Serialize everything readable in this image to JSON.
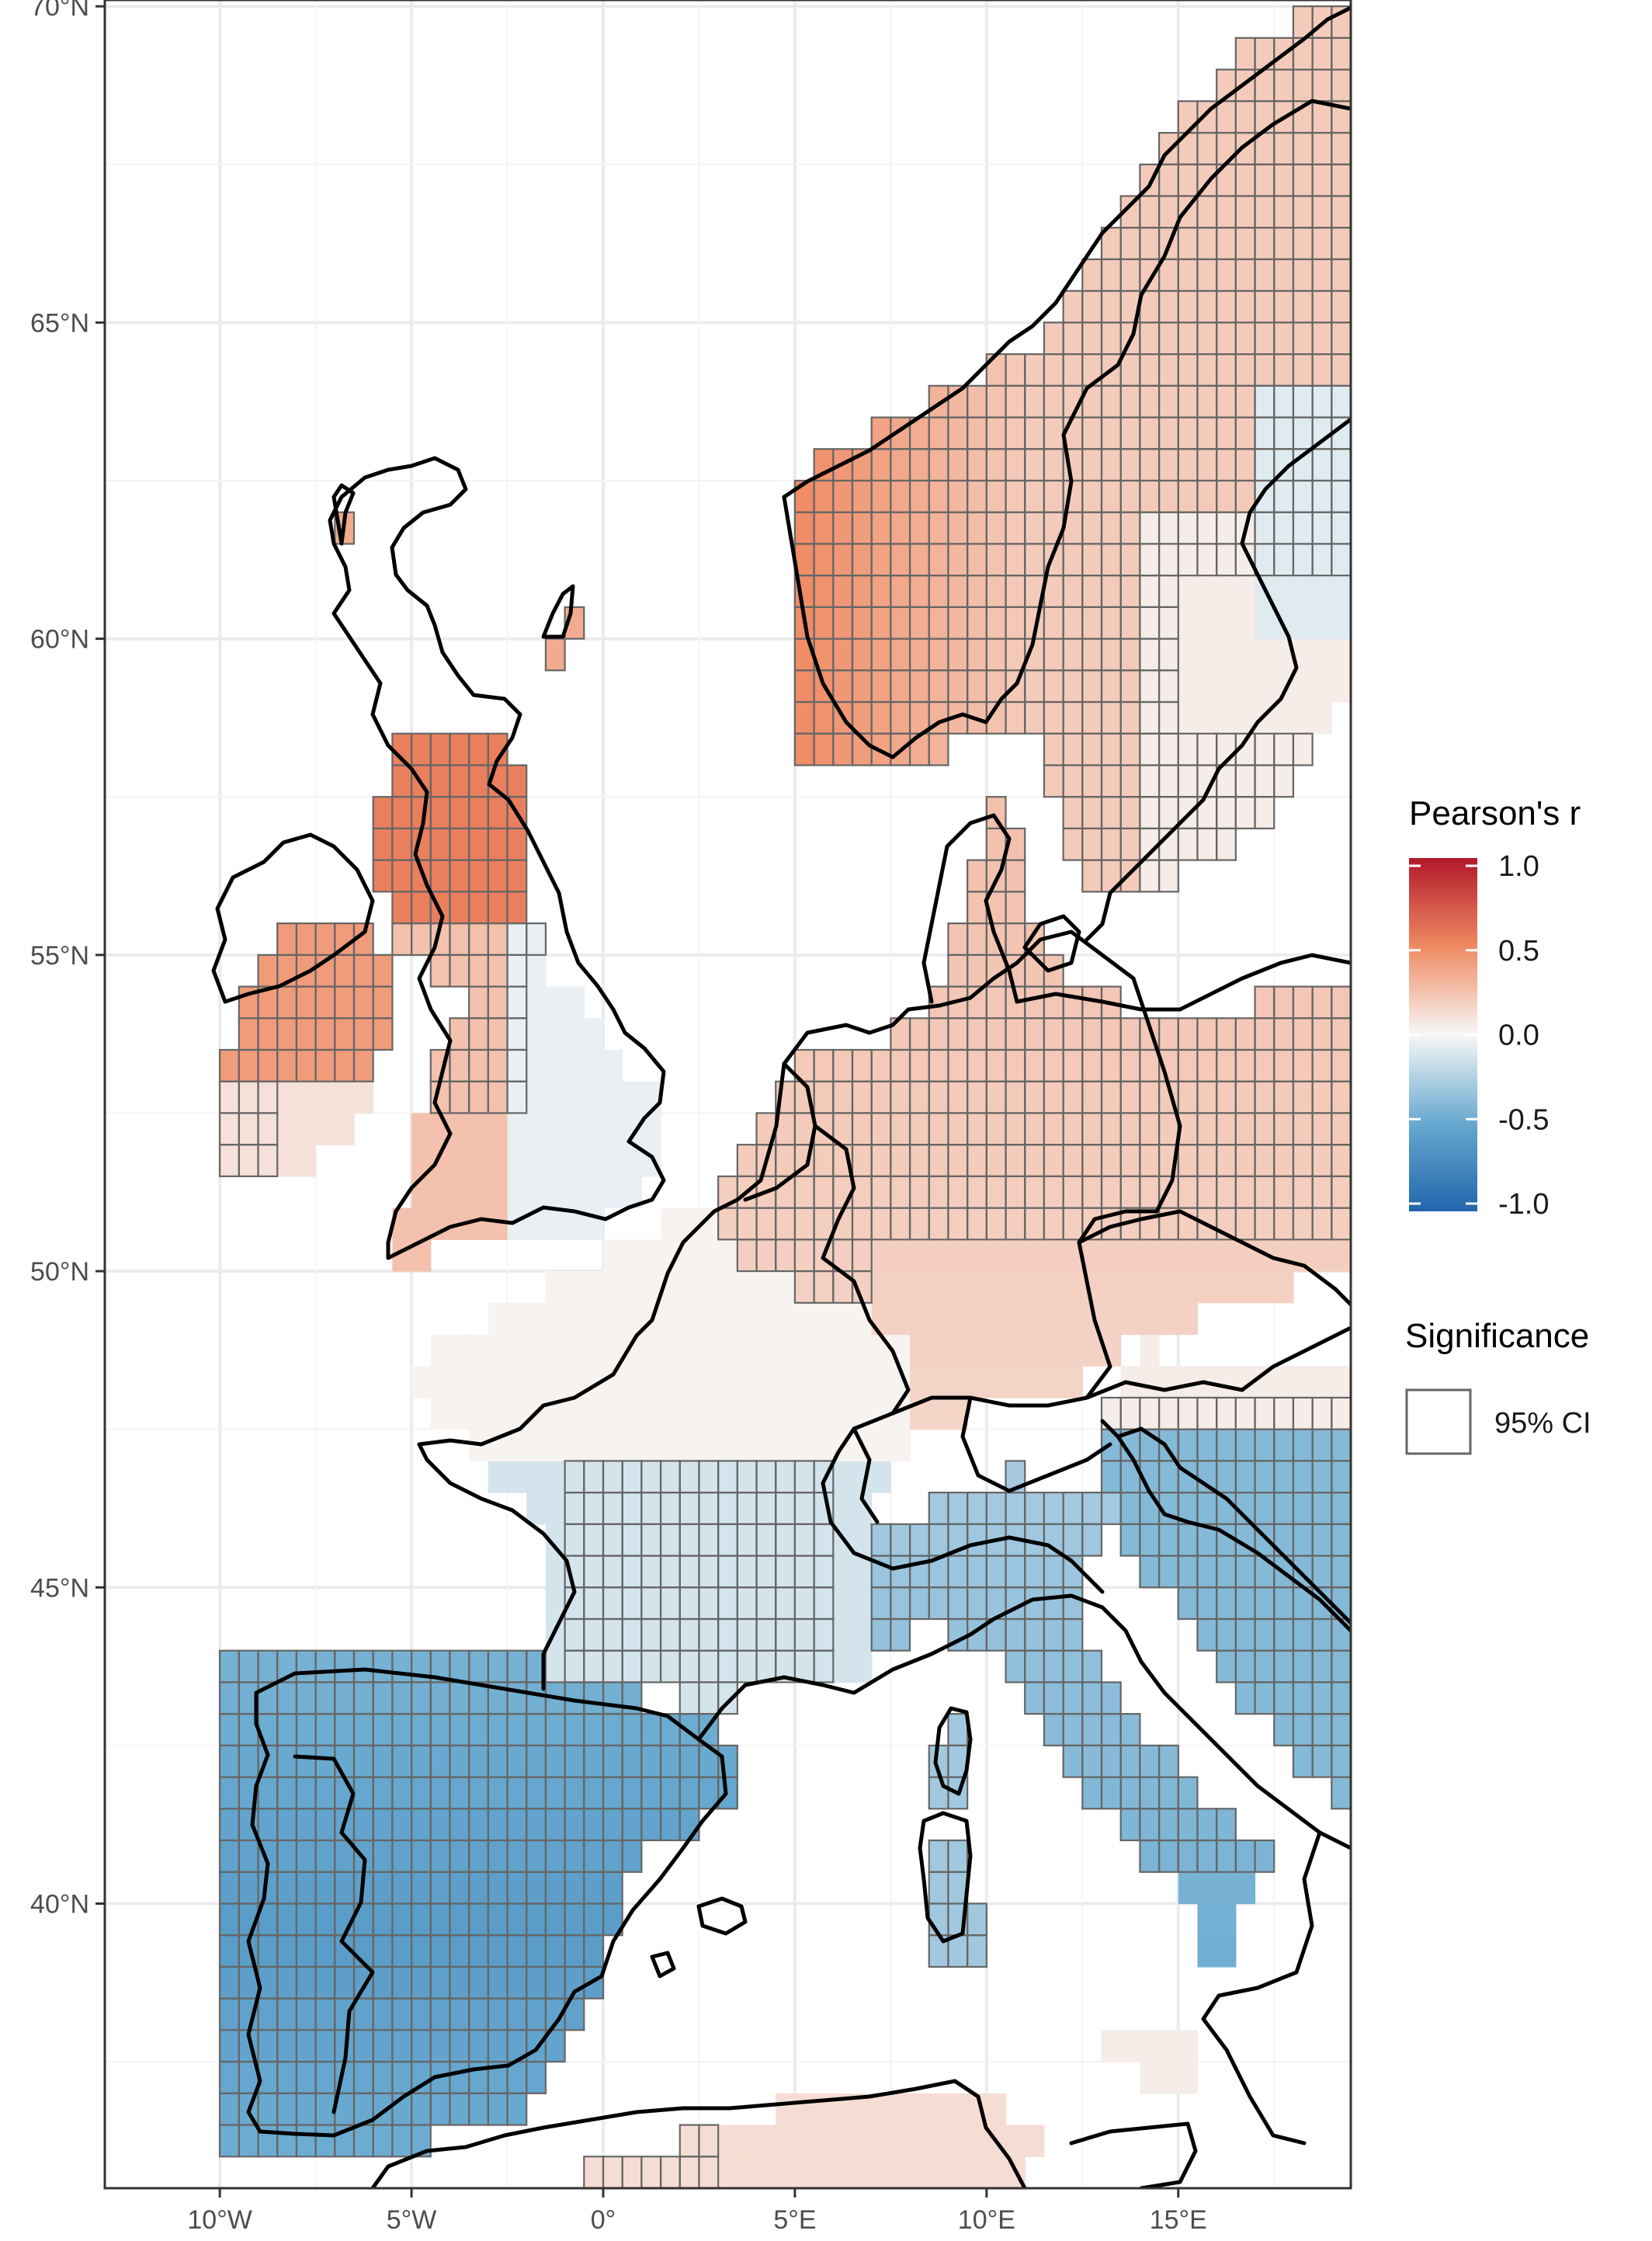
{
  "map": {
    "x_axis": {
      "range": [
        -13,
        19.5
      ],
      "ticks": [
        {
          "value": -10,
          "label": "10°W"
        },
        {
          "value": -5,
          "label": "5°W"
        },
        {
          "value": 0,
          "label": "0°"
        },
        {
          "value": 5,
          "label": "5°E"
        },
        {
          "value": 10,
          "label": "10°E"
        },
        {
          "value": 15,
          "label": "15°E"
        }
      ]
    },
    "y_axis": {
      "range": [
        35.5,
        70.1
      ],
      "ticks": [
        {
          "value": 70,
          "label": "70°N"
        },
        {
          "value": 65,
          "label": "65°N"
        },
        {
          "value": 60,
          "label": "60°N"
        },
        {
          "value": 55,
          "label": "55°N"
        },
        {
          "value": 50,
          "label": "50°N"
        },
        {
          "value": 45,
          "label": "45°N"
        },
        {
          "value": 40,
          "label": "40°N"
        }
      ]
    },
    "grid": true,
    "grid_color": "#ebebeb",
    "colors": {
      "high": "#b2182b",
      "mid": "#f7f7f7",
      "low": "#2166ac",
      "significance_border": "#666666"
    }
  },
  "legend": {
    "fill_title": "Pearson's r",
    "fill_scale": [
      {
        "value": 1.0,
        "label": "1.0"
      },
      {
        "value": 0.5,
        "label": "0.5"
      },
      {
        "value": 0.0,
        "label": "0.0"
      },
      {
        "value": -0.5,
        "label": "-0.5"
      },
      {
        "value": -1.0,
        "label": "-1.0"
      }
    ],
    "significance_title": "Significance",
    "significance_item": "95% CI"
  }
}
